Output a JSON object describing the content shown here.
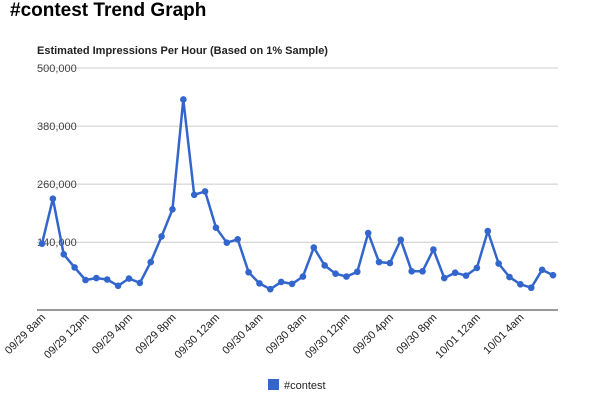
{
  "page": {
    "title": "#contest Trend Graph"
  },
  "chart_data": {
    "type": "line",
    "title": "Estimated Impressions Per Hour (Based on 1% Sample)",
    "xlabel": "",
    "ylabel": "",
    "ylim": [
      0,
      500000
    ],
    "y_ticks": [
      "500,000",
      "380,000",
      "260,000",
      "140,000"
    ],
    "y_tick_values": [
      500000,
      380000,
      260000,
      140000
    ],
    "grid": true,
    "legend_position": "bottom",
    "x_tick_labels": [
      {
        "label": "09/29 8am",
        "index": 0
      },
      {
        "label": "09/29 12pm",
        "index": 4
      },
      {
        "label": "09/29 4pm",
        "index": 8
      },
      {
        "label": "09/29 8pm",
        "index": 12
      },
      {
        "label": "09/30 12am",
        "index": 16
      },
      {
        "label": "09/30 4am",
        "index": 20
      },
      {
        "label": "09/30 8am",
        "index": 24
      },
      {
        "label": "09/30 12pm",
        "index": 28
      },
      {
        "label": "09/30 4pm",
        "index": 32
      },
      {
        "label": "09/30 8pm",
        "index": 36
      },
      {
        "label": "10/01 12am",
        "index": 40
      },
      {
        "label": "10/01 4am",
        "index": 44
      }
    ],
    "series": [
      {
        "name": "#contest",
        "color": "#3366cc",
        "values": [
          137000,
          230000,
          115000,
          88000,
          62000,
          66000,
          63000,
          50000,
          65000,
          56000,
          99000,
          152000,
          208000,
          435000,
          238000,
          245000,
          170000,
          139000,
          146000,
          78000,
          55000,
          43000,
          58000,
          54000,
          69000,
          129000,
          92000,
          75000,
          69000,
          79000,
          159000,
          99000,
          97000,
          145000,
          80000,
          80000,
          125000,
          66000,
          77000,
          71000,
          87000,
          163000,
          96000,
          68000,
          53000,
          46000,
          83000,
          72000
        ]
      }
    ]
  }
}
